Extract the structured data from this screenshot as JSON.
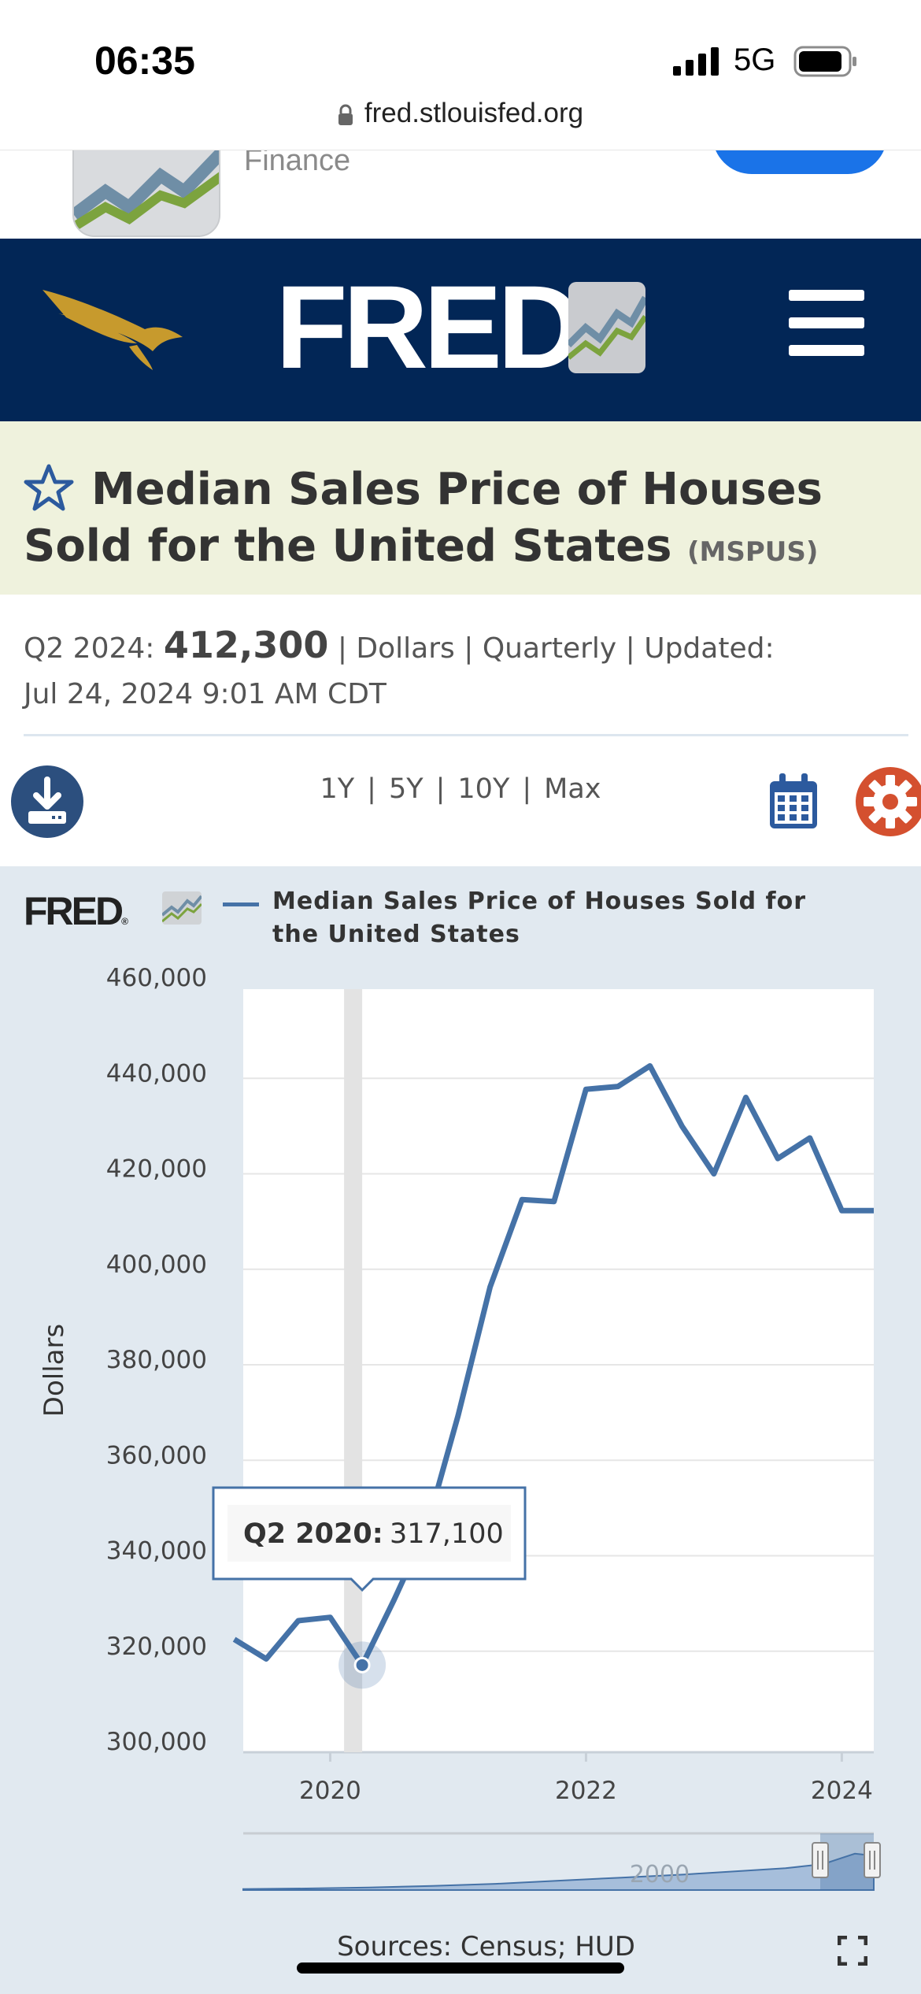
{
  "status_bar": {
    "time": "06:35",
    "network": "5G"
  },
  "browser": {
    "url": "fred.stlouisfed.org"
  },
  "app_banner": {
    "subtitle": "Finance"
  },
  "header": {
    "logo_text": "FRED",
    "reg_mark": "®"
  },
  "series": {
    "title": "Median Sales Price of Houses Sold for the United States",
    "id": "(MSPUS)",
    "period_label": "Q2 2024:",
    "latest_value": "412,300",
    "meta_tail": "| Dollars | Quarterly | Updated:",
    "updated": "Jul 24, 2024 9:01 AM CDT"
  },
  "toolbar": {
    "ranges": [
      "1Y",
      "5Y",
      "10Y",
      "Max"
    ],
    "separator": "|"
  },
  "chart_legend": {
    "logo_text": "FRED",
    "reg_mark": "®",
    "series_name_line1": "Median Sales Price of Houses Sold for",
    "series_name_line2": "the United States"
  },
  "chart_data": {
    "type": "line",
    "title": "",
    "ylabel": "Dollars",
    "xlabel": "",
    "ylim": [
      300000,
      460000
    ],
    "xlim": [
      2019.32,
      2024.25
    ],
    "y_ticks": [
      300000,
      320000,
      340000,
      360000,
      380000,
      400000,
      420000,
      440000,
      460000
    ],
    "y_tick_labels": [
      "300,000",
      "320,000",
      "340,000",
      "360,000",
      "380,000",
      "400,000",
      "420,000",
      "440,000",
      "460,000"
    ],
    "x_ticks": [
      2020,
      2022,
      2024
    ],
    "x_tick_labels": [
      "2020",
      "2022",
      "2024"
    ],
    "grid": true,
    "legend": "top",
    "colors": {
      "line": "#4572a7",
      "plot_bg": "#ffffff",
      "chart_bg": "#e1e9f0"
    },
    "series": [
      {
        "name": "Median Sales Price of Houses Sold for the United States",
        "x": [
          "2019-Q2",
          "2019-Q3",
          "2019-Q4",
          "2020-Q1",
          "2020-Q2",
          "2020-Q3",
          "2020-Q4",
          "2021-Q1",
          "2021-Q2",
          "2021-Q3",
          "2021-Q4",
          "2022-Q1",
          "2022-Q2",
          "2022-Q3",
          "2022-Q4",
          "2023-Q1",
          "2023-Q2",
          "2023-Q3",
          "2023-Q4",
          "2024-Q1",
          "2024-Q2"
        ],
        "values": [
          322500,
          318400,
          326400,
          327100,
          317100,
          330800,
          345400,
          369400,
          396300,
          414600,
          414200,
          437700,
          438300,
          442600,
          430000,
          420000,
          436000,
          423200,
          427500,
          412300,
          412300
        ]
      }
    ],
    "highlight": {
      "label": "Q2 2020:",
      "value": "317,100",
      "x": "2020-Q2",
      "y": 317100
    },
    "navigator_label": "2000"
  },
  "footer": {
    "sources": "Sources: Census; HUD"
  }
}
